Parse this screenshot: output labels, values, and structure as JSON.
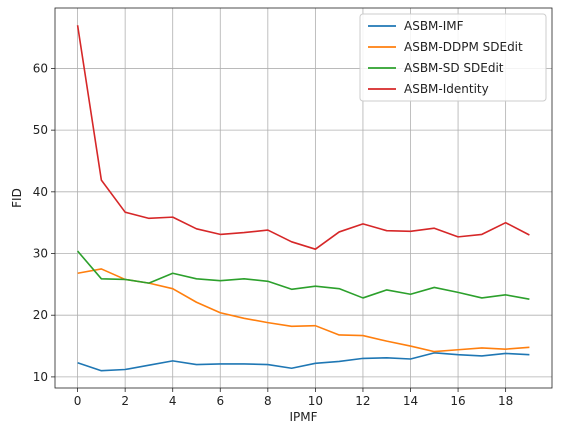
{
  "chart_data": {
    "type": "line",
    "title": "",
    "xlabel": "IPMF",
    "ylabel": "FID",
    "x": [
      0,
      1,
      2,
      3,
      4,
      5,
      6,
      7,
      8,
      9,
      10,
      11,
      12,
      13,
      14,
      15,
      16,
      17,
      18,
      19
    ],
    "xlim": [
      -0.95,
      19.95
    ],
    "ylim": [
      8.2,
      69.8
    ],
    "xticks": [
      0,
      2,
      4,
      6,
      8,
      10,
      12,
      14,
      16,
      18
    ],
    "yticks": [
      10,
      20,
      30,
      40,
      50,
      60
    ],
    "grid": true,
    "legend_position": "top-right",
    "series": [
      {
        "name": "ASBM-IMF",
        "color": "#1f77b4",
        "values": [
          12.3,
          11.0,
          11.2,
          11.9,
          12.6,
          12.0,
          12.1,
          12.1,
          12.0,
          11.4,
          12.2,
          12.5,
          13.0,
          13.1,
          12.9,
          13.9,
          13.6,
          13.4,
          13.8,
          13.6
        ]
      },
      {
        "name": "ASBM-DDPM SDEdit",
        "color": "#ff7f0e",
        "values": [
          26.8,
          27.5,
          25.8,
          25.2,
          24.3,
          22.1,
          20.4,
          19.5,
          18.8,
          18.2,
          18.3,
          16.8,
          16.7,
          15.8,
          15.0,
          14.1,
          14.4,
          14.7,
          14.5,
          14.8
        ]
      },
      {
        "name": "ASBM-SD SDEdit",
        "color": "#2ca02c",
        "values": [
          30.4,
          25.9,
          25.8,
          25.2,
          26.8,
          25.9,
          25.6,
          25.9,
          25.5,
          24.2,
          24.7,
          24.3,
          22.8,
          24.1,
          23.4,
          24.5,
          23.7,
          22.8,
          23.3,
          22.6
        ]
      },
      {
        "name": "ASBM-Identity",
        "color": "#d62728",
        "values": [
          67.0,
          41.9,
          36.7,
          35.7,
          35.9,
          34.0,
          33.1,
          33.4,
          33.8,
          31.9,
          30.7,
          33.5,
          34.8,
          33.7,
          33.6,
          34.1,
          32.7,
          33.1,
          35.0,
          33.0
        ]
      }
    ]
  }
}
